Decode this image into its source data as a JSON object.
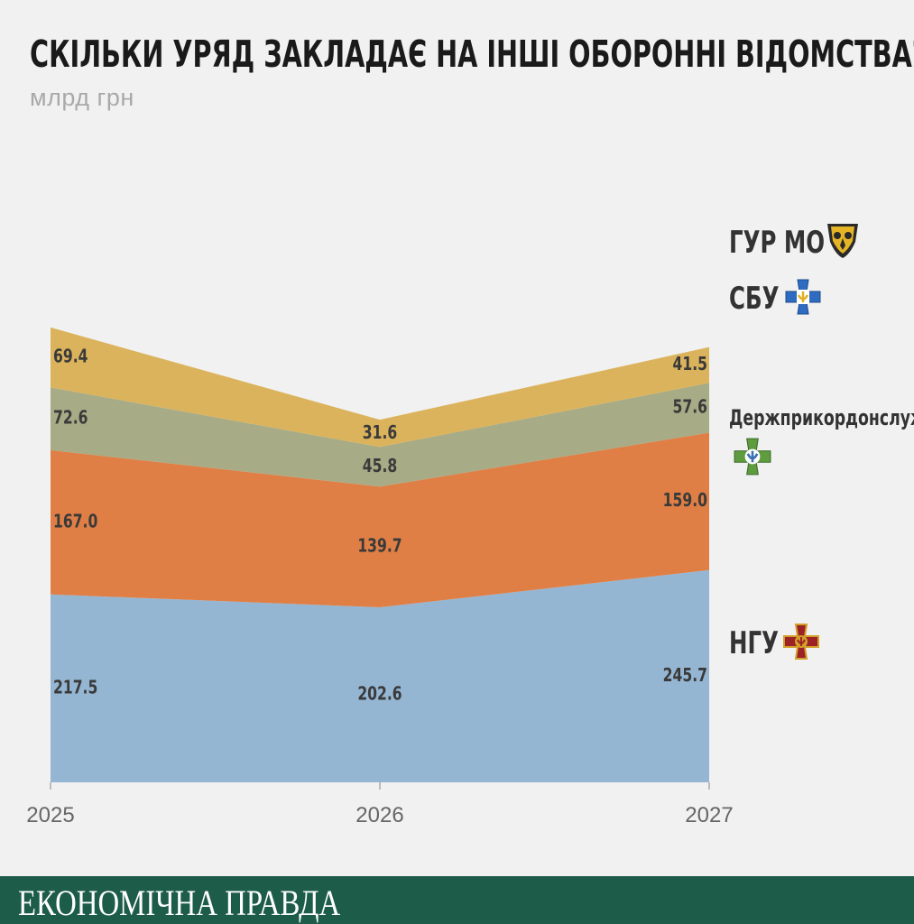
{
  "header": {
    "title": "СКІЛЬКИ УРЯД ЗАКЛАДАЄ НА ІНШІ ОБОРОННІ ВІДОМСТВА?",
    "unit": "млрд грн"
  },
  "chart_data": {
    "type": "area",
    "stacked": true,
    "title": "СКІЛЬКИ УРЯД ЗАКЛАДАЄ НА ІНШІ ОБОРОННІ ВІДОМСТВА?",
    "subtitle": "млрд грн",
    "x": [
      "2025",
      "2026",
      "2027"
    ],
    "series": [
      {
        "name": "НГУ",
        "values": [
          217.5,
          202.6,
          245.7
        ],
        "labels": [
          "217.5",
          "202.6",
          "245.7"
        ],
        "color": "#95b6d3"
      },
      {
        "name": "Держприкордонслужба",
        "values": [
          167.0,
          139.7,
          159.0
        ],
        "labels": [
          "167.0",
          "139.7",
          "159.0"
        ],
        "color": "#e07f45"
      },
      {
        "name": "СБУ",
        "values": [
          72.6,
          45.8,
          57.6
        ],
        "labels": [
          "72.6",
          "45.8",
          "57.6"
        ],
        "color": "#a7ab86"
      },
      {
        "name": "ГУР МО",
        "values": [
          69.4,
          31.6,
          41.5
        ],
        "labels": [
          "69.4",
          "31.6",
          "41.5"
        ],
        "color": "#dbb35c"
      }
    ],
    "legend_position": "right",
    "grid": false
  },
  "legend": {
    "items": [
      {
        "label": "ГУР МО",
        "icon": "owl-emblem-icon"
      },
      {
        "label": "СБУ",
        "icon": "sbu-cross-icon"
      },
      {
        "label": "Держприкордонслужба",
        "icon": "border-guard-cross-icon"
      },
      {
        "label": "НГУ",
        "icon": "ngu-cross-icon"
      }
    ]
  },
  "footer": {
    "brand": "ЕКОНОМІЧНА ПРАВДА",
    "color": "#1c5c49"
  }
}
